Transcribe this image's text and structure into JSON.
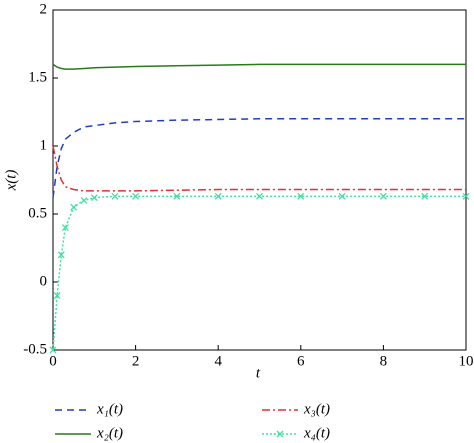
{
  "chart_data": {
    "type": "line",
    "x_label": "t",
    "y_label": "x(t)",
    "x": [
      0,
      0.1,
      0.2,
      0.3,
      0.5,
      0.75,
      1,
      1.5,
      2,
      3,
      4,
      5,
      6,
      7,
      8,
      9,
      10
    ],
    "series": [
      {
        "name": "x₁(t)",
        "color": "#1f3fbf",
        "dash": "7,5",
        "values": [
          0.62,
          0.85,
          0.98,
          1.05,
          1.1,
          1.14,
          1.15,
          1.17,
          1.18,
          1.19,
          1.195,
          1.2,
          1.2,
          1.2,
          1.2,
          1.2,
          1.2
        ]
      },
      {
        "name": "x₂(t)",
        "color": "#2a7a1a",
        "dash": "",
        "values": [
          1.6,
          1.58,
          1.57,
          1.565,
          1.565,
          1.57,
          1.575,
          1.58,
          1.585,
          1.59,
          1.595,
          1.6,
          1.6,
          1.6,
          1.6,
          1.6,
          1.6
        ]
      },
      {
        "name": "x₃(t)",
        "color": "#e03030",
        "dash": "8,3,2,3",
        "values": [
          1.0,
          0.85,
          0.75,
          0.7,
          0.68,
          0.67,
          0.67,
          0.67,
          0.67,
          0.675,
          0.68,
          0.68,
          0.68,
          0.68,
          0.68,
          0.68,
          0.68
        ]
      },
      {
        "name": "x₄(t)",
        "color": "#40e0a0",
        "dash": "2,2",
        "marker": "x",
        "values": [
          -0.5,
          -0.1,
          0.2,
          0.4,
          0.55,
          0.6,
          0.62,
          0.63,
          0.63,
          0.63,
          0.63,
          0.63,
          0.63,
          0.63,
          0.63,
          0.63,
          0.63
        ]
      }
    ],
    "xlim": [
      0,
      10
    ],
    "xticks": [
      0,
      2,
      4,
      6,
      8,
      10
    ],
    "ylim": [
      -0.5,
      2
    ],
    "yticks": [
      -0.5,
      0,
      0.5,
      1,
      1.5,
      2
    ]
  }
}
